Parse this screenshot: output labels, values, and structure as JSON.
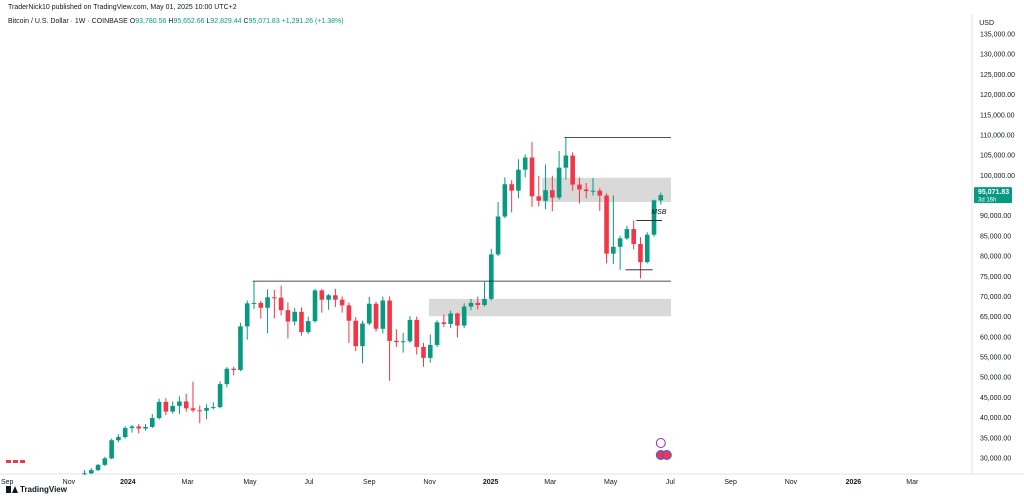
{
  "header": {
    "publisher": "TraderNick10 published on TradingView.com, May 01, 2025 10:00 UTC+2",
    "symbol": "Bitcoin / U.S. Dollar · 1W · COINBASE",
    "o_label": "O",
    "o_value": "93,780.56",
    "h_label": "H",
    "h_value": "95,652.66",
    "l_label": "L",
    "l_value": "92,829.44",
    "c_label": "C",
    "c_value": "95,071.83",
    "change": "+1,291.26 (+1.38%)"
  },
  "currency": "USD",
  "footer": {
    "brand": "TradingView"
  },
  "colors": {
    "up": "#089981",
    "down": "#f23645",
    "zone": "#d9d9d9",
    "line": "#131722",
    "grid": "#e0e3eb",
    "price_label": "#089981"
  },
  "chart_data": {
    "type": "candlestick",
    "price_axis": {
      "ticks": [
        30000,
        35000,
        40000,
        45000,
        50000,
        55000,
        60000,
        65000,
        70000,
        75000,
        80000,
        85000,
        90000,
        95000,
        100000,
        105000,
        110000,
        115000,
        120000,
        125000,
        130000,
        135000
      ],
      "tick_labels": [
        "30,000.00",
        "35,000.00",
        "40,000.00",
        "45,000.00",
        "50,000.00",
        "55,000.00",
        "60,000.00",
        "65,000.00",
        "70,000.00",
        "75,000.00",
        "80,000.00",
        "85,000.00",
        "90,000.00",
        "95,000.00",
        "100,000.00",
        "105,000.00",
        "110,000.00",
        "115,000.00",
        "120,000.00",
        "125,000.00",
        "130,000.00",
        "135,000.00"
      ],
      "ylim": [
        28000,
        138000
      ],
      "current_price_label": "95,071.83",
      "countdown": "3d 16h"
    },
    "time_axis": {
      "labels": [
        "Sep",
        "Nov",
        "2024",
        "Mar",
        "May",
        "Jul",
        "Sep",
        "Nov",
        "2025",
        "Mar",
        "May",
        "Jul",
        "Sep",
        "Nov",
        "2026",
        "Mar"
      ],
      "bold": [
        "2024",
        "2025",
        "2026"
      ],
      "label_week_index": [
        -11.4,
        -2.3,
        6.4,
        15.2,
        24.4,
        33.1,
        42.0,
        50.9,
        59.9,
        68.7,
        77.6,
        86.4,
        95.3,
        104.2,
        113.4,
        122.1
      ]
    },
    "candles": [
      {
        "o": 26000,
        "h": 27000,
        "l": 25800,
        "c": 26200
      },
      {
        "o": 26200,
        "h": 27500,
        "l": 26000,
        "c": 27000
      },
      {
        "o": 27000,
        "h": 28500,
        "l": 26800,
        "c": 28300
      },
      {
        "o": 28300,
        "h": 30300,
        "l": 28000,
        "c": 29900
      },
      {
        "o": 29900,
        "h": 34800,
        "l": 29700,
        "c": 34400
      },
      {
        "o": 34400,
        "h": 35900,
        "l": 33900,
        "c": 35200
      },
      {
        "o": 35200,
        "h": 37900,
        "l": 34800,
        "c": 37400
      },
      {
        "o": 37400,
        "h": 38200,
        "l": 36300,
        "c": 37800
      },
      {
        "o": 37800,
        "h": 38400,
        "l": 36100,
        "c": 37300
      },
      {
        "o": 37300,
        "h": 38400,
        "l": 36800,
        "c": 37700
      },
      {
        "o": 37700,
        "h": 40900,
        "l": 37400,
        "c": 39900
      },
      {
        "o": 39900,
        "h": 44700,
        "l": 39500,
        "c": 43900
      },
      {
        "o": 43900,
        "h": 44800,
        "l": 40600,
        "c": 41500
      },
      {
        "o": 41500,
        "h": 44000,
        "l": 41000,
        "c": 42900
      },
      {
        "o": 42900,
        "h": 45300,
        "l": 40900,
        "c": 44000
      },
      {
        "o": 44000,
        "h": 45900,
        "l": 41500,
        "c": 42300
      },
      {
        "o": 42300,
        "h": 48900,
        "l": 41300,
        "c": 41800
      },
      {
        "o": 41800,
        "h": 43000,
        "l": 38600,
        "c": 41700
      },
      {
        "o": 41700,
        "h": 43300,
        "l": 39600,
        "c": 42400
      },
      {
        "o": 42400,
        "h": 43800,
        "l": 42000,
        "c": 42600
      },
      {
        "o": 42600,
        "h": 49000,
        "l": 42300,
        "c": 48300
      },
      {
        "o": 48300,
        "h": 52500,
        "l": 47500,
        "c": 52100
      },
      {
        "o": 52100,
        "h": 52600,
        "l": 50500,
        "c": 51800
      },
      {
        "o": 51800,
        "h": 63500,
        "l": 51500,
        "c": 62600
      },
      {
        "o": 62600,
        "h": 69000,
        "l": 59300,
        "c": 68300
      },
      {
        "o": 68300,
        "h": 73800,
        "l": 66900,
        "c": 68400
      },
      {
        "o": 68400,
        "h": 68900,
        "l": 64500,
        "c": 67200
      },
      {
        "o": 67200,
        "h": 71800,
        "l": 60900,
        "c": 69800
      },
      {
        "o": 69800,
        "h": 71600,
        "l": 64600,
        "c": 69700
      },
      {
        "o": 69700,
        "h": 72700,
        "l": 65300,
        "c": 66600
      },
      {
        "o": 66600,
        "h": 68500,
        "l": 59600,
        "c": 63800
      },
      {
        "o": 63800,
        "h": 67200,
        "l": 62800,
        "c": 66200
      },
      {
        "o": 66200,
        "h": 67300,
        "l": 60300,
        "c": 61200
      },
      {
        "o": 61200,
        "h": 65000,
        "l": 60700,
        "c": 63900
      },
      {
        "o": 63900,
        "h": 71900,
        "l": 63500,
        "c": 71500
      },
      {
        "o": 71500,
        "h": 71900,
        "l": 66000,
        "c": 69200
      },
      {
        "o": 69200,
        "h": 70600,
        "l": 66700,
        "c": 70300
      },
      {
        "o": 70300,
        "h": 71900,
        "l": 67400,
        "c": 69200
      },
      {
        "o": 69200,
        "h": 70000,
        "l": 66000,
        "c": 67800
      },
      {
        "o": 67800,
        "h": 68500,
        "l": 58500,
        "c": 64000
      },
      {
        "o": 64000,
        "h": 64900,
        "l": 56500,
        "c": 57700
      },
      {
        "o": 57700,
        "h": 64000,
        "l": 53500,
        "c": 63300
      },
      {
        "o": 63300,
        "h": 69900,
        "l": 62900,
        "c": 68200
      },
      {
        "o": 68200,
        "h": 68700,
        "l": 61300,
        "c": 62000
      },
      {
        "o": 62000,
        "h": 70000,
        "l": 60800,
        "c": 69000
      },
      {
        "o": 69000,
        "h": 70000,
        "l": 49100,
        "c": 59000
      },
      {
        "o": 59000,
        "h": 61900,
        "l": 57500,
        "c": 58700
      },
      {
        "o": 58700,
        "h": 61000,
        "l": 56100,
        "c": 58900
      },
      {
        "o": 58900,
        "h": 65100,
        "l": 58500,
        "c": 64200
      },
      {
        "o": 64200,
        "h": 65000,
        "l": 55600,
        "c": 57500
      },
      {
        "o": 57500,
        "h": 58500,
        "l": 52600,
        "c": 54800
      },
      {
        "o": 54800,
        "h": 60600,
        "l": 53600,
        "c": 58000
      },
      {
        "o": 58000,
        "h": 64100,
        "l": 57500,
        "c": 63600
      },
      {
        "o": 63600,
        "h": 65500,
        "l": 62400,
        "c": 63200
      },
      {
        "o": 63200,
        "h": 66500,
        "l": 62200,
        "c": 65800
      },
      {
        "o": 65800,
        "h": 66000,
        "l": 59800,
        "c": 62800
      },
      {
        "o": 62800,
        "h": 68300,
        "l": 62200,
        "c": 67500
      },
      {
        "o": 67500,
        "h": 69400,
        "l": 66600,
        "c": 68400
      },
      {
        "o": 68400,
        "h": 70000,
        "l": 66800,
        "c": 67900
      },
      {
        "o": 67900,
        "h": 73600,
        "l": 67500,
        "c": 69400
      },
      {
        "o": 69400,
        "h": 81800,
        "l": 69000,
        "c": 80400
      },
      {
        "o": 80400,
        "h": 93400,
        "l": 80000,
        "c": 89800
      },
      {
        "o": 89800,
        "h": 99500,
        "l": 89400,
        "c": 97800
      },
      {
        "o": 97800,
        "h": 98800,
        "l": 90800,
        "c": 96200
      },
      {
        "o": 96200,
        "h": 104000,
        "l": 94300,
        "c": 101400
      },
      {
        "o": 101400,
        "h": 105200,
        "l": 99500,
        "c": 104400
      },
      {
        "o": 104400,
        "h": 108300,
        "l": 92200,
        "c": 94800
      },
      {
        "o": 94800,
        "h": 99900,
        "l": 92300,
        "c": 93700
      },
      {
        "o": 93700,
        "h": 102700,
        "l": 91600,
        "c": 96300
      },
      {
        "o": 96300,
        "h": 99900,
        "l": 91100,
        "c": 94500
      },
      {
        "o": 94500,
        "h": 106000,
        "l": 94000,
        "c": 101900
      },
      {
        "o": 101900,
        "h": 109400,
        "l": 99000,
        "c": 104900
      },
      {
        "o": 104900,
        "h": 105700,
        "l": 96200,
        "c": 97700
      },
      {
        "o": 97700,
        "h": 99500,
        "l": 93000,
        "c": 96500
      },
      {
        "o": 96500,
        "h": 98100,
        "l": 94300,
        "c": 96100
      },
      {
        "o": 96100,
        "h": 99300,
        "l": 95000,
        "c": 96200
      },
      {
        "o": 96200,
        "h": 96800,
        "l": 91200,
        "c": 95000
      },
      {
        "o": 95000,
        "h": 95500,
        "l": 78200,
        "c": 80600
      },
      {
        "o": 80600,
        "h": 95000,
        "l": 78000,
        "c": 82300
      },
      {
        "o": 82300,
        "h": 85000,
        "l": 76600,
        "c": 84400
      },
      {
        "o": 84400,
        "h": 87500,
        "l": 84000,
        "c": 86700
      },
      {
        "o": 86700,
        "h": 88800,
        "l": 81700,
        "c": 83000
      },
      {
        "o": 83000,
        "h": 84700,
        "l": 74500,
        "c": 78500
      },
      {
        "o": 78500,
        "h": 85900,
        "l": 78200,
        "c": 85300
      },
      {
        "o": 85300,
        "h": 94000,
        "l": 84800,
        "c": 93800
      },
      {
        "o": 93800,
        "h": 95700,
        "l": 92800,
        "c": 95100
      }
    ],
    "zones": [
      {
        "from_week": 67.5,
        "to_week": 86.5,
        "low": 93400,
        "high": 99400
      },
      {
        "from_week": 50.8,
        "to_week": 86.5,
        "low": 65100,
        "high": 69400
      }
    ],
    "lines": [
      {
        "from_week": 24.8,
        "to_week": 86.5,
        "price": 73800
      },
      {
        "from_week": 70.8,
        "to_week": 86.5,
        "price": 109400
      },
      {
        "from_week": 79.8,
        "to_week": 83.8,
        "price": 76600
      },
      {
        "from_week": 81.4,
        "to_week": 85.2,
        "price": 88800
      }
    ],
    "annotations": [
      {
        "text": "MSB",
        "week": 83.6,
        "price": 90400
      }
    ]
  }
}
